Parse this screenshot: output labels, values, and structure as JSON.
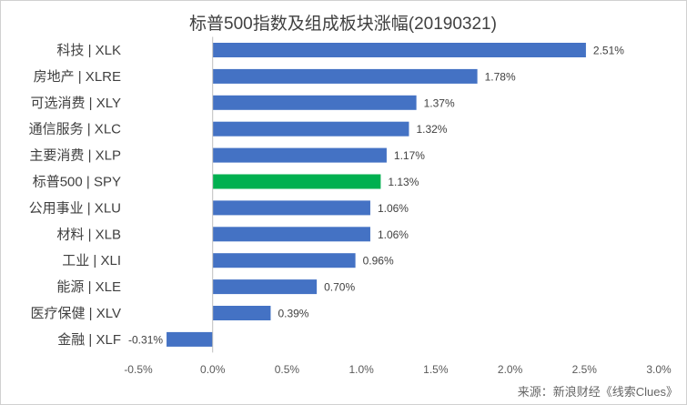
{
  "chart_data": {
    "type": "bar",
    "orientation": "horizontal",
    "title": "标普500指数及组成板块涨幅(20190321)",
    "categories": [
      "科技 | XLK",
      "房地产 | XLRE",
      "可选消费 | XLY",
      "通信服务 | XLC",
      "主要消费 | XLP",
      "标普500 | SPY",
      "公用事业 | XLU",
      "材料 | XLB",
      "工业 | XLI",
      "能源 | XLE",
      "医疗保健 | XLV",
      "金融 | XLF"
    ],
    "values": [
      2.51,
      1.78,
      1.37,
      1.32,
      1.17,
      1.13,
      1.06,
      1.06,
      0.96,
      0.7,
      0.39,
      -0.31
    ],
    "value_labels": [
      "2.51%",
      "1.78%",
      "1.37%",
      "1.32%",
      "1.17%",
      "1.13%",
      "1.06%",
      "1.06%",
      "0.96%",
      "0.70%",
      "0.39%",
      "-0.31%"
    ],
    "bar_colors": [
      "#4472c4",
      "#4472c4",
      "#4472c4",
      "#4472c4",
      "#4472c4",
      "#00b050",
      "#4472c4",
      "#4472c4",
      "#4472c4",
      "#4472c4",
      "#4472c4",
      "#4472c4"
    ],
    "xlim": [
      -0.5,
      3.0
    ],
    "x_ticks": [
      -0.5,
      0.0,
      0.5,
      1.0,
      1.5,
      2.0,
      2.5,
      3.0
    ],
    "x_tick_labels": [
      "-0.5%",
      "0.0%",
      "0.5%",
      "1.0%",
      "1.5%",
      "2.0%",
      "2.5%",
      "3.0%"
    ],
    "grid": false,
    "legend": "none",
    "source": "来源：新浪财经《线索Clues》"
  }
}
